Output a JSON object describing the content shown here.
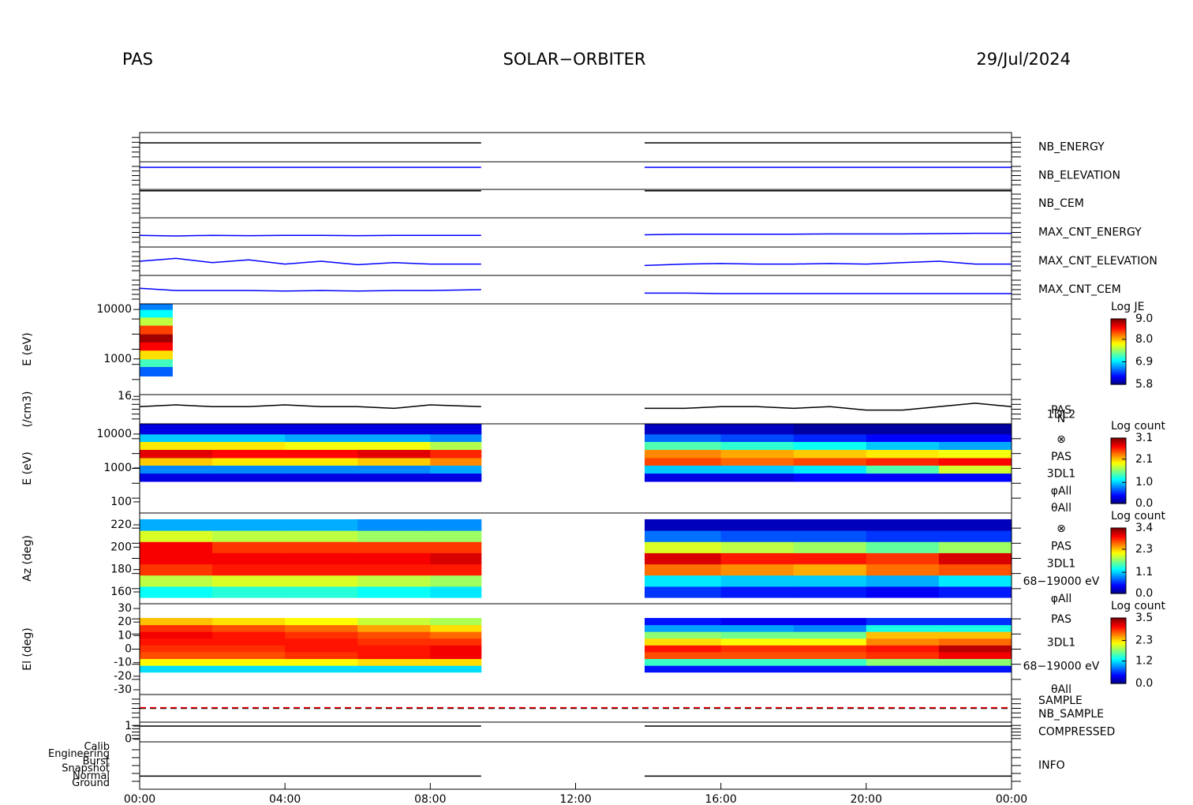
{
  "header": {
    "left": "PAS",
    "title": "SOLAR−ORBITER",
    "date": "29/Jul/2024"
  },
  "chart_data": [
    {
      "type": "line",
      "label": "NB_ENERGY",
      "label_color": "#0000ff",
      "ylim": [
        0,
        1
      ],
      "x": [
        0,
        1,
        2,
        3,
        4,
        5,
        6,
        7,
        8,
        9.4,
        11.6,
        13.9,
        15,
        16,
        17,
        18,
        19,
        20,
        21,
        22,
        23,
        24
      ],
      "series": [
        {
          "color": "#000000",
          "values": [
            0.65,
            0.65,
            0.65,
            0.65,
            0.65,
            0.65,
            0.65,
            0.65,
            0.65,
            0.65,
            null,
            0.65,
            0.65,
            0.65,
            0.65,
            0.65,
            0.65,
            0.65,
            0.65,
            0.65,
            0.65,
            0.65
          ]
        }
      ]
    },
    {
      "type": "line",
      "label": "NB_ELEVATION",
      "label_color": "#0000ff",
      "ylim": [
        0,
        1
      ],
      "x": [
        0,
        1,
        2,
        3,
        4,
        5,
        6,
        7,
        8,
        9.4,
        11.6,
        13.9,
        15,
        16,
        17,
        18,
        19,
        20,
        21,
        22,
        23,
        24
      ],
      "series": [
        {
          "color": "#0000ff",
          "values": [
            0.8,
            0.8,
            0.8,
            0.8,
            0.8,
            0.8,
            0.8,
            0.8,
            0.8,
            0.8,
            null,
            0.8,
            0.8,
            0.8,
            0.8,
            0.8,
            0.8,
            0.8,
            0.8,
            0.8,
            0.8,
            0.8
          ]
        }
      ]
    },
    {
      "type": "line",
      "label": "NB_CEM",
      "label_color": "#0000ff",
      "ylim": [
        0,
        1
      ],
      "x": [
        0,
        1,
        2,
        3,
        4,
        5,
        6,
        7,
        8,
        9.4,
        11.6,
        13.9,
        15,
        16,
        17,
        18,
        19,
        20,
        21,
        22,
        23,
        24
      ],
      "series": [
        {
          "color": "#000000",
          "values": [
            0.95,
            0.95,
            0.95,
            0.95,
            0.95,
            0.95,
            0.95,
            0.95,
            0.95,
            0.95,
            null,
            0.95,
            0.95,
            0.95,
            0.95,
            0.95,
            0.95,
            0.95,
            0.95,
            0.95,
            0.95,
            0.95
          ]
        }
      ]
    },
    {
      "type": "line",
      "label": "MAX_CNT_ENERGY",
      "label_color": "#0000ff",
      "ylim": [
        0,
        1
      ],
      "x": [
        0,
        1,
        2,
        3,
        4,
        5,
        6,
        7,
        8,
        9.4,
        11.6,
        13.9,
        15,
        16,
        17,
        18,
        19,
        20,
        21,
        22,
        23,
        24
      ],
      "series": [
        {
          "color": "#0000ff",
          "values": [
            0.4,
            0.38,
            0.4,
            0.39,
            0.4,
            0.4,
            0.39,
            0.4,
            0.4,
            0.4,
            null,
            0.42,
            0.44,
            0.44,
            0.44,
            0.44,
            0.45,
            0.45,
            0.45,
            0.46,
            0.47,
            0.47
          ]
        }
      ]
    },
    {
      "type": "line",
      "label": "MAX_CNT_ELEVATION",
      "label_color": "#0000ff",
      "ylim": [
        0,
        1
      ],
      "x": [
        0,
        1,
        2,
        3,
        4,
        5,
        6,
        7,
        8,
        9.4,
        11.6,
        13.9,
        15,
        16,
        17,
        18,
        19,
        20,
        21,
        22,
        23,
        24
      ],
      "series": [
        {
          "color": "#0000ff",
          "values": [
            0.5,
            0.6,
            0.45,
            0.55,
            0.4,
            0.5,
            0.38,
            0.45,
            0.4,
            0.4,
            null,
            0.35,
            0.4,
            0.42,
            0.4,
            0.4,
            0.42,
            0.4,
            0.45,
            0.5,
            0.4,
            0.4
          ]
        }
      ]
    },
    {
      "type": "line",
      "label": "MAX_CNT_CEM",
      "label_color": "#0000ff",
      "ylim": [
        0,
        1
      ],
      "x": [
        0,
        1,
        2,
        3,
        4,
        5,
        6,
        7,
        8,
        9.4,
        11.6,
        13.9,
        15,
        16,
        17,
        18,
        19,
        20,
        21,
        22,
        23,
        24
      ],
      "series": [
        {
          "color": "#0000ff",
          "values": [
            0.55,
            0.47,
            0.47,
            0.47,
            0.45,
            0.47,
            0.45,
            0.47,
            0.47,
            0.5,
            null,
            0.38,
            0.38,
            0.36,
            0.36,
            0.36,
            0.36,
            0.36,
            0.36,
            0.36,
            0.36,
            0.36
          ]
        }
      ]
    },
    {
      "type": "heatmap",
      "ylabel": "E (eV)",
      "log": true,
      "ylim": [
        190,
        13000
      ],
      "yticks": [
        1000,
        10000
      ],
      "xbins": [
        0,
        0.9
      ],
      "ybins": [
        450,
        700,
        1000,
        1500,
        2200,
        3200,
        4800,
        7000,
        10000,
        13000
      ],
      "z": [
        [
          6.5
        ],
        [
          7.2
        ],
        [
          7.9
        ],
        [
          8.6
        ],
        [
          8.9
        ],
        [
          8.4
        ],
        [
          7.6
        ],
        [
          7.0
        ],
        [
          6.6
        ]
      ],
      "colorbar_title": "Log JE",
      "clim": [
        5.8,
        9.0
      ],
      "cticks": [
        5.8,
        6.9,
        {
          "value": 8,
          "label": "8.0"
        },
        {
          "value": 9,
          "label": "9.0"
        }
      ]
    },
    {
      "type": "line",
      "ylabel": "(/cm3)",
      "ylim": [
        0,
        17
      ],
      "yticks": [
        16
      ],
      "right_texts": [
        "PAS",
        "1DL2",
        "N"
      ],
      "x": [
        0,
        1,
        2,
        3,
        4,
        5,
        6,
        7,
        8,
        9.4,
        11.6,
        13.9,
        15,
        16,
        17,
        18,
        19,
        20,
        21,
        22,
        23,
        24
      ],
      "series": [
        {
          "color": "#000000",
          "values": [
            10,
            11,
            10,
            10,
            11,
            10,
            10,
            9,
            11,
            10,
            null,
            9,
            9,
            10,
            10,
            9,
            10,
            8,
            8,
            10,
            12,
            10
          ]
        }
      ]
    },
    {
      "type": "heatmap",
      "ylabel": "E (eV)",
      "log": true,
      "ylim": [
        47,
        20000
      ],
      "yticks": [
        100,
        1000,
        10000
      ],
      "xbins": [
        0,
        2,
        4,
        6,
        8,
        9.4,
        13.9,
        16,
        18,
        20,
        22,
        24
      ],
      "ybins": [
        400,
        700,
        1200,
        2000,
        3500,
        6000,
        10000,
        20000
      ],
      "z": [
        [
          0.3,
          0.3,
          0.3,
          0.3,
          0.3,
          null,
          0.3,
          0.3,
          0.4,
          0.4,
          0.4
        ],
        [
          0.8,
          0.8,
          0.8,
          0.8,
          0.9,
          null,
          1.0,
          1.0,
          1.1,
          1.4,
          1.8
        ],
        [
          2.1,
          2.0,
          2.0,
          2.1,
          2.3,
          null,
          2.5,
          2.4,
          2.5,
          2.6,
          2.7
        ],
        [
          2.8,
          2.7,
          2.7,
          2.8,
          2.6,
          null,
          2.3,
          2.2,
          2.1,
          2.0,
          1.9
        ],
        [
          2.0,
          2.0,
          1.9,
          1.9,
          1.7,
          null,
          1.4,
          1.3,
          1.2,
          1.0,
          0.9
        ],
        [
          1.0,
          1.0,
          0.9,
          0.9,
          0.8,
          null,
          0.7,
          0.6,
          0.5,
          0.4,
          0.4
        ],
        [
          0.3,
          0.3,
          0.3,
          0.3,
          0.3,
          null,
          0.2,
          0.2,
          0.1,
          0.1,
          0.1
        ]
      ],
      "colorbar_title": "Log count",
      "clim": [
        0,
        3.1
      ],
      "cticks": [
        {
          "value": 0,
          "label": "0.0"
        },
        {
          "value": 1,
          "label": "1.0"
        },
        2.1,
        3.1
      ],
      "right_texts": [
        "⊗",
        "PAS",
        "3DL1",
        "φAll",
        "θAll"
      ]
    },
    {
      "type": "heatmap",
      "ylabel": "Az (deg)",
      "ylim": [
        149.4,
        230.6
      ],
      "yticks": [
        160,
        180,
        200,
        220
      ],
      "xbins": [
        0,
        2,
        4,
        6,
        8,
        9.4,
        13.9,
        16,
        18,
        20,
        22,
        24
      ],
      "ybins": [
        155,
        165,
        175,
        185,
        195,
        205,
        215,
        225
      ],
      "z": [
        [
          1.3,
          1.4,
          1.4,
          1.3,
          1.2,
          null,
          0.6,
          0.5,
          0.5,
          0.4,
          0.5
        ],
        [
          1.9,
          2.0,
          2.0,
          1.9,
          1.8,
          null,
          1.2,
          1.1,
          1.1,
          1.0,
          1.2
        ],
        [
          2.8,
          2.9,
          2.9,
          2.9,
          2.9,
          null,
          2.6,
          2.5,
          2.4,
          2.6,
          2.7
        ],
        [
          3.0,
          3.0,
          3.0,
          3.0,
          3.1,
          null,
          3.1,
          2.9,
          2.9,
          2.8,
          3.1
        ],
        [
          3.0,
          2.8,
          2.8,
          2.8,
          2.8,
          null,
          2.0,
          1.9,
          1.8,
          1.6,
          1.8
        ],
        [
          2.0,
          1.9,
          1.9,
          1.8,
          1.8,
          null,
          0.8,
          0.7,
          0.7,
          0.6,
          0.6
        ],
        [
          1.0,
          1.0,
          1.0,
          0.9,
          0.9,
          null,
          0.2,
          0.2,
          0.2,
          0.2,
          0.2
        ]
      ],
      "colorbar_title": "Log count",
      "clim": [
        0,
        3.4
      ],
      "cticks": [
        {
          "value": 0,
          "label": "0.0"
        },
        1.1,
        2.3,
        3.4
      ],
      "right_texts": [
        "⊗",
        "PAS",
        "3DL1",
        "68−19000 eV",
        "φAll"
      ]
    },
    {
      "type": "heatmap",
      "ylabel": "El (deg)",
      "ylim": [
        -33.5,
        33.5
      ],
      "yticks": [
        -30,
        -20,
        -10,
        0,
        10,
        20,
        30
      ],
      "xbins": [
        0,
        2,
        4,
        6,
        8,
        9.4,
        13.9,
        16,
        18,
        20,
        22,
        24
      ],
      "ybins": [
        -17,
        -12,
        -7,
        -2,
        3,
        8,
        13,
        18,
        23
      ],
      "z": [
        [
          1.2,
          1.2,
          1.2,
          1.2,
          1.2,
          null,
          0.5,
          0.5,
          0.5,
          0.5,
          0.5
        ],
        [
          2.2,
          2.2,
          2.2,
          2.3,
          2.3,
          null,
          1.5,
          1.5,
          1.5,
          1.8,
          1.8
        ],
        [
          2.8,
          2.8,
          2.9,
          3.0,
          3.1,
          null,
          2.8,
          2.8,
          2.8,
          2.9,
          3.1
        ],
        [
          2.9,
          2.9,
          3.0,
          3.0,
          3.1,
          null,
          3.0,
          2.9,
          2.9,
          3.0,
          3.3
        ],
        [
          3.0,
          3.0,
          3.0,
          2.9,
          2.9,
          null,
          2.3,
          2.2,
          2.2,
          2.6,
          2.7
        ],
        [
          3.1,
          3.0,
          2.9,
          2.8,
          2.7,
          null,
          1.8,
          1.7,
          1.7,
          2.4,
          2.4
        ],
        [
          2.9,
          2.8,
          2.7,
          2.5,
          2.3,
          null,
          1.0,
          1.0,
          0.9,
          1.4,
          1.4
        ],
        [
          2.4,
          2.3,
          2.2,
          2.0,
          1.9,
          null,
          0.5,
          0.4,
          0.4,
          0.6,
          0.6
        ]
      ],
      "colorbar_title": "Log count",
      "clim": [
        0,
        3.5
      ],
      "cticks": [
        {
          "value": 0,
          "label": "0.0"
        },
        1.2,
        2.3,
        3.5
      ],
      "right_texts": [
        "PAS",
        "3DL1",
        "68−19000 eV",
        "θAll"
      ]
    },
    {
      "type": "line",
      "ylim": [
        -1,
        1
      ],
      "x": [
        0,
        24
      ],
      "series": [
        {
          "name": "SAMPLE",
          "label_color": "#0000ff",
          "color": "#000000",
          "dashed": true,
          "values": [
            0,
            0
          ]
        },
        {
          "name": "NB_SAMPLE",
          "label_color": "#ff0000",
          "color": "#ff0000",
          "dashed": true,
          "values": [
            0.05,
            0.05
          ]
        }
      ]
    },
    {
      "type": "line",
      "label": "COMPRESSED",
      "label_color": "#0000ff",
      "ylim": [
        -0.2,
        1.3
      ],
      "yticks": [
        0,
        1
      ],
      "x": [
        0,
        9.4,
        11.6,
        13.9,
        24
      ],
      "series": [
        {
          "color": "#000000",
          "values": [
            1,
            1,
            null,
            1,
            1
          ]
        }
      ]
    },
    {
      "type": "line",
      "label": "INFO",
      "label_color": "#0000ff",
      "ylim": [
        -0.8,
        5.7
      ],
      "categories": [
        "Ground",
        "Normal",
        "Snapshot",
        "Burst",
        "Engineering",
        "Calib"
      ],
      "x": [
        0,
        9.4,
        11.6,
        13.9,
        24
      ],
      "series": [
        {
          "color": "#000000",
          "values": [
            1,
            1,
            null,
            1,
            1
          ]
        }
      ],
      "xlim": [
        0,
        24
      ],
      "xticks": [
        {
          "value": 0,
          "label": "00:00"
        },
        {
          "value": 4,
          "label": "04:00"
        },
        {
          "value": 8,
          "label": "08:00"
        },
        {
          "value": 12,
          "label": "12:00"
        },
        {
          "value": 16,
          "label": "16:00"
        },
        {
          "value": 20,
          "label": "20:00"
        },
        {
          "value": 24,
          "label": "00:00"
        }
      ]
    }
  ]
}
